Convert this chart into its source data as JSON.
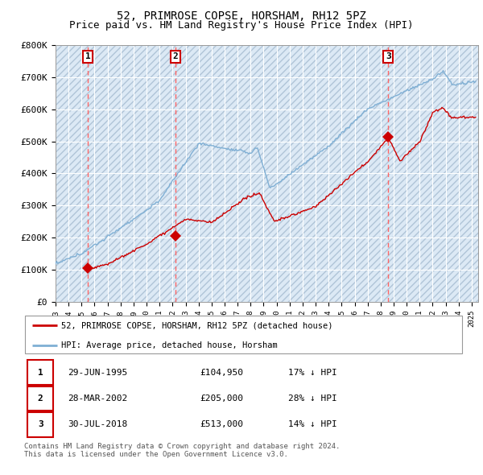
{
  "title": "52, PRIMROSE COPSE, HORSHAM, RH12 5PZ",
  "subtitle": "Price paid vs. HM Land Registry's House Price Index (HPI)",
  "ylim": [
    0,
    800000
  ],
  "yticks": [
    0,
    100000,
    200000,
    300000,
    400000,
    500000,
    600000,
    700000,
    800000
  ],
  "ytick_labels": [
    "£0",
    "£100K",
    "£200K",
    "£300K",
    "£400K",
    "£500K",
    "£600K",
    "£700K",
    "£800K"
  ],
  "xlim_start": 1993.0,
  "xlim_end": 2025.5,
  "plot_bg_color": "#dce9f5",
  "hatch_color": "#b0c4d8",
  "grid_color": "#ffffff",
  "red_line_color": "#cc0000",
  "blue_line_color": "#7fafd4",
  "sale_marker_color": "#cc0000",
  "vline_color": "#ff6666",
  "sale_points": [
    {
      "date": 1995.49,
      "price": 104950,
      "label": "1"
    },
    {
      "date": 2002.23,
      "price": 205000,
      "label": "2"
    },
    {
      "date": 2018.58,
      "price": 513000,
      "label": "3"
    }
  ],
  "legend_entries": [
    "52, PRIMROSE COPSE, HORSHAM, RH12 5PZ (detached house)",
    "HPI: Average price, detached house, Horsham"
  ],
  "table_rows": [
    {
      "num": "1",
      "date": "29-JUN-1995",
      "price": "£104,950",
      "hpi": "17% ↓ HPI"
    },
    {
      "num": "2",
      "date": "28-MAR-2002",
      "price": "£205,000",
      "hpi": "28% ↓ HPI"
    },
    {
      "num": "3",
      "date": "30-JUL-2018",
      "price": "£513,000",
      "hpi": "14% ↓ HPI"
    }
  ],
  "footnote": "Contains HM Land Registry data © Crown copyright and database right 2024.\nThis data is licensed under the Open Government Licence v3.0.",
  "title_fontsize": 10,
  "subtitle_fontsize": 9
}
